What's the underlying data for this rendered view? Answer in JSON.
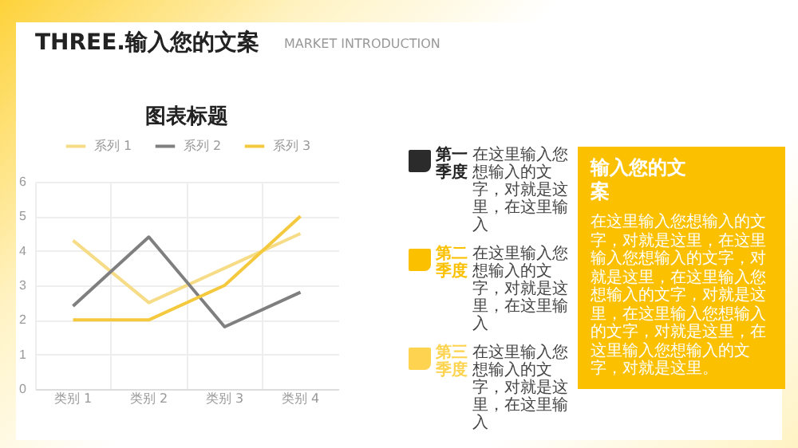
{
  "chart_data": {
    "type": "line",
    "title": "图表标题",
    "categories": [
      "类别 1",
      "类别 2",
      "类别 3",
      "类别 4"
    ],
    "series": [
      {
        "name": "系列 1",
        "color": "#f7dc87",
        "values": [
          4.3,
          2.5,
          3.5,
          4.5
        ]
      },
      {
        "name": "系列 2",
        "color": "#7f7f7f",
        "values": [
          2.4,
          4.4,
          1.8,
          2.8
        ]
      },
      {
        "name": "系列 3",
        "color": "#f5c93e",
        "values": [
          2,
          2,
          3,
          5
        ]
      }
    ],
    "ylim": [
      0,
      6
    ],
    "yticks": [
      0,
      1,
      2,
      3,
      4,
      5,
      6
    ],
    "grid": true,
    "legend": "top",
    "marker": "none",
    "line_style": "solid",
    "annotations": [
      "THREE.输入您的文案",
      "MARKET INTRODUCTION",
      "第一季度",
      "在这里输入您想输入的文字，对就是这里，在这里输入",
      "第二季度",
      "在这里输入您想输入的文字，对就是这里，在这里输入",
      "第三季度",
      "在这里输入您想输入的文字，对就是这里，在这里输入",
      "输入您的文案",
      "在这里输入您想输入的文字，对就是这里，在这里输入您想输入的文字，对就是这里，在这里输入您想输入的文字，对就是这里，在这里输入您想输入的文字，对就是这里，在这里输入您想输入的文字，对就是这里。"
    ]
  }
}
